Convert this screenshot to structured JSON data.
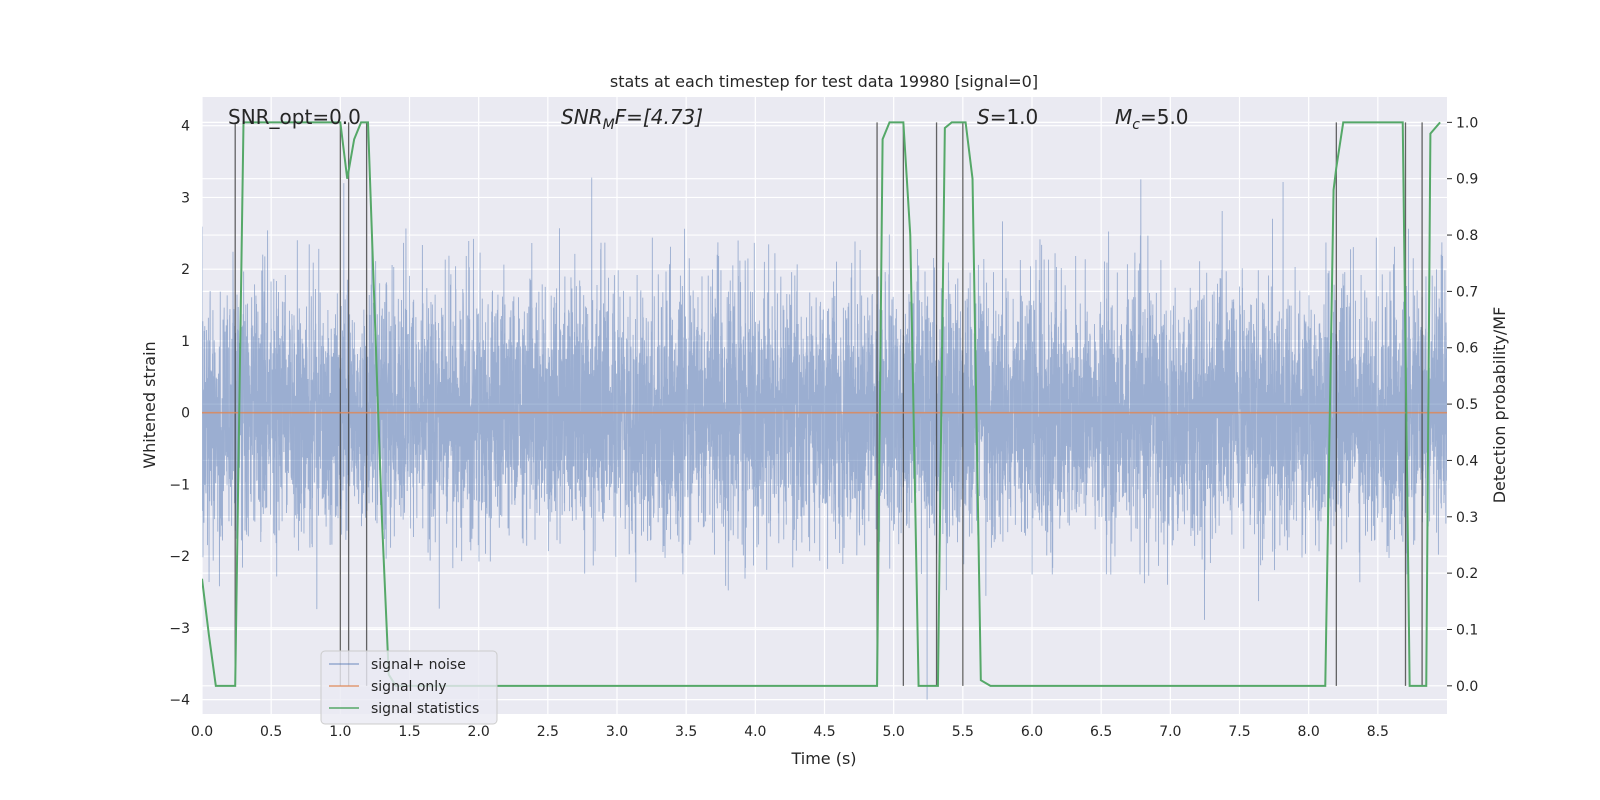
{
  "chart_data": {
    "type": "line",
    "title": "stats at each timestep for test data 19980 [signal=0]",
    "xlabel": "Time (s)",
    "ylabel_left": "Whitened strain",
    "ylabel_right": "Detection probability/MF",
    "xlim": [
      0.0,
      9.0
    ],
    "ylim_left": [
      -4.2,
      4.4
    ],
    "ylim_right": [
      -0.05,
      1.045
    ],
    "x_ticks": [
      "0.0",
      "0.5",
      "1.0",
      "1.5",
      "2.0",
      "2.5",
      "3.0",
      "3.5",
      "4.0",
      "4.5",
      "5.0",
      "5.5",
      "6.0",
      "6.5",
      "7.0",
      "7.5",
      "8.0",
      "8.5"
    ],
    "x_tick_values": [
      0.0,
      0.5,
      1.0,
      1.5,
      2.0,
      2.5,
      3.0,
      3.5,
      4.0,
      4.5,
      5.0,
      5.5,
      6.0,
      6.5,
      7.0,
      7.5,
      8.0,
      8.5
    ],
    "y_left_ticks": [
      "4",
      "3",
      "2",
      "1",
      "0",
      "−1",
      "−2",
      "−3",
      "−4"
    ],
    "y_left_tick_values": [
      4,
      3,
      2,
      1,
      0,
      -1,
      -2,
      -3,
      -4
    ],
    "y_right_ticks": [
      "1.0",
      "0.9",
      "0.8",
      "0.7",
      "0.6",
      "0.5",
      "0.4",
      "0.3",
      "0.2",
      "0.1",
      "0.0"
    ],
    "y_right_tick_values": [
      1.0,
      0.9,
      0.8,
      0.7,
      0.6,
      0.5,
      0.4,
      0.3,
      0.2,
      0.1,
      0.0
    ],
    "grid": true,
    "legend_position": "bottom-left",
    "annotations": {
      "snr_opt": "SNR_opt=0.0",
      "snr_mf_main": "SNR",
      "snr_mf_sub": "M",
      "snr_mf_rest": "F=[4.73]",
      "s_main": "S",
      "s_rest": "=1.0",
      "mc_main": "M",
      "mc_sub": "c",
      "mc_rest": "=5.0"
    },
    "series": [
      {
        "name": "signal+ noise",
        "color": "#4c72b0",
        "noise_std": 0.85,
        "noise_range": [
          -4.0,
          4.0
        ],
        "x_range": [
          0.0,
          9.0
        ]
      },
      {
        "name": "signal only",
        "color": "#dd8452",
        "x": [
          0.0,
          9.0
        ],
        "y": [
          0.0,
          0.0
        ]
      },
      {
        "name": "signal statistics",
        "color": "#55a868",
        "x": [
          0.0,
          0.05,
          0.1,
          0.24,
          0.3,
          0.35,
          0.4,
          0.5,
          0.6,
          0.7,
          0.8,
          0.9,
          1.0,
          1.05,
          1.1,
          1.15,
          1.2,
          1.25,
          1.3,
          1.35,
          1.4,
          1.5,
          2.0,
          3.0,
          4.0,
          4.88,
          4.92,
          4.97,
          5.02,
          5.07,
          5.12,
          5.18,
          5.25,
          5.32,
          5.37,
          5.42,
          5.47,
          5.52,
          5.57,
          5.63,
          5.7,
          5.8,
          6.0,
          7.0,
          8.0,
          8.12,
          8.18,
          8.2,
          8.25,
          8.3,
          8.4,
          8.5,
          8.6,
          8.68,
          8.73,
          8.8,
          8.85,
          8.88,
          8.95
        ],
        "y": [
          0.19,
          0.09,
          0.0,
          0.0,
          1.0,
          1.0,
          1.0,
          1.0,
          1.0,
          1.0,
          1.0,
          1.0,
          1.0,
          0.9,
          0.97,
          1.0,
          1.0,
          0.65,
          0.3,
          0.02,
          0.0,
          0.0,
          0.0,
          0.0,
          0.0,
          0.0,
          0.97,
          1.0,
          1.0,
          1.0,
          0.8,
          0.0,
          0.0,
          0.0,
          0.99,
          1.0,
          1.0,
          1.0,
          0.9,
          0.01,
          0.0,
          0.0,
          0.0,
          0.0,
          0.0,
          0.0,
          0.88,
          0.92,
          1.0,
          1.0,
          1.0,
          1.0,
          1.0,
          1.0,
          0.0,
          0.0,
          0.0,
          0.98,
          1.0
        ]
      }
    ],
    "vertical_markers_x": [
      0.24,
      1.0,
      1.06,
      1.19,
      4.88,
      5.07,
      5.31,
      5.5,
      8.2,
      8.7,
      8.82
    ]
  }
}
